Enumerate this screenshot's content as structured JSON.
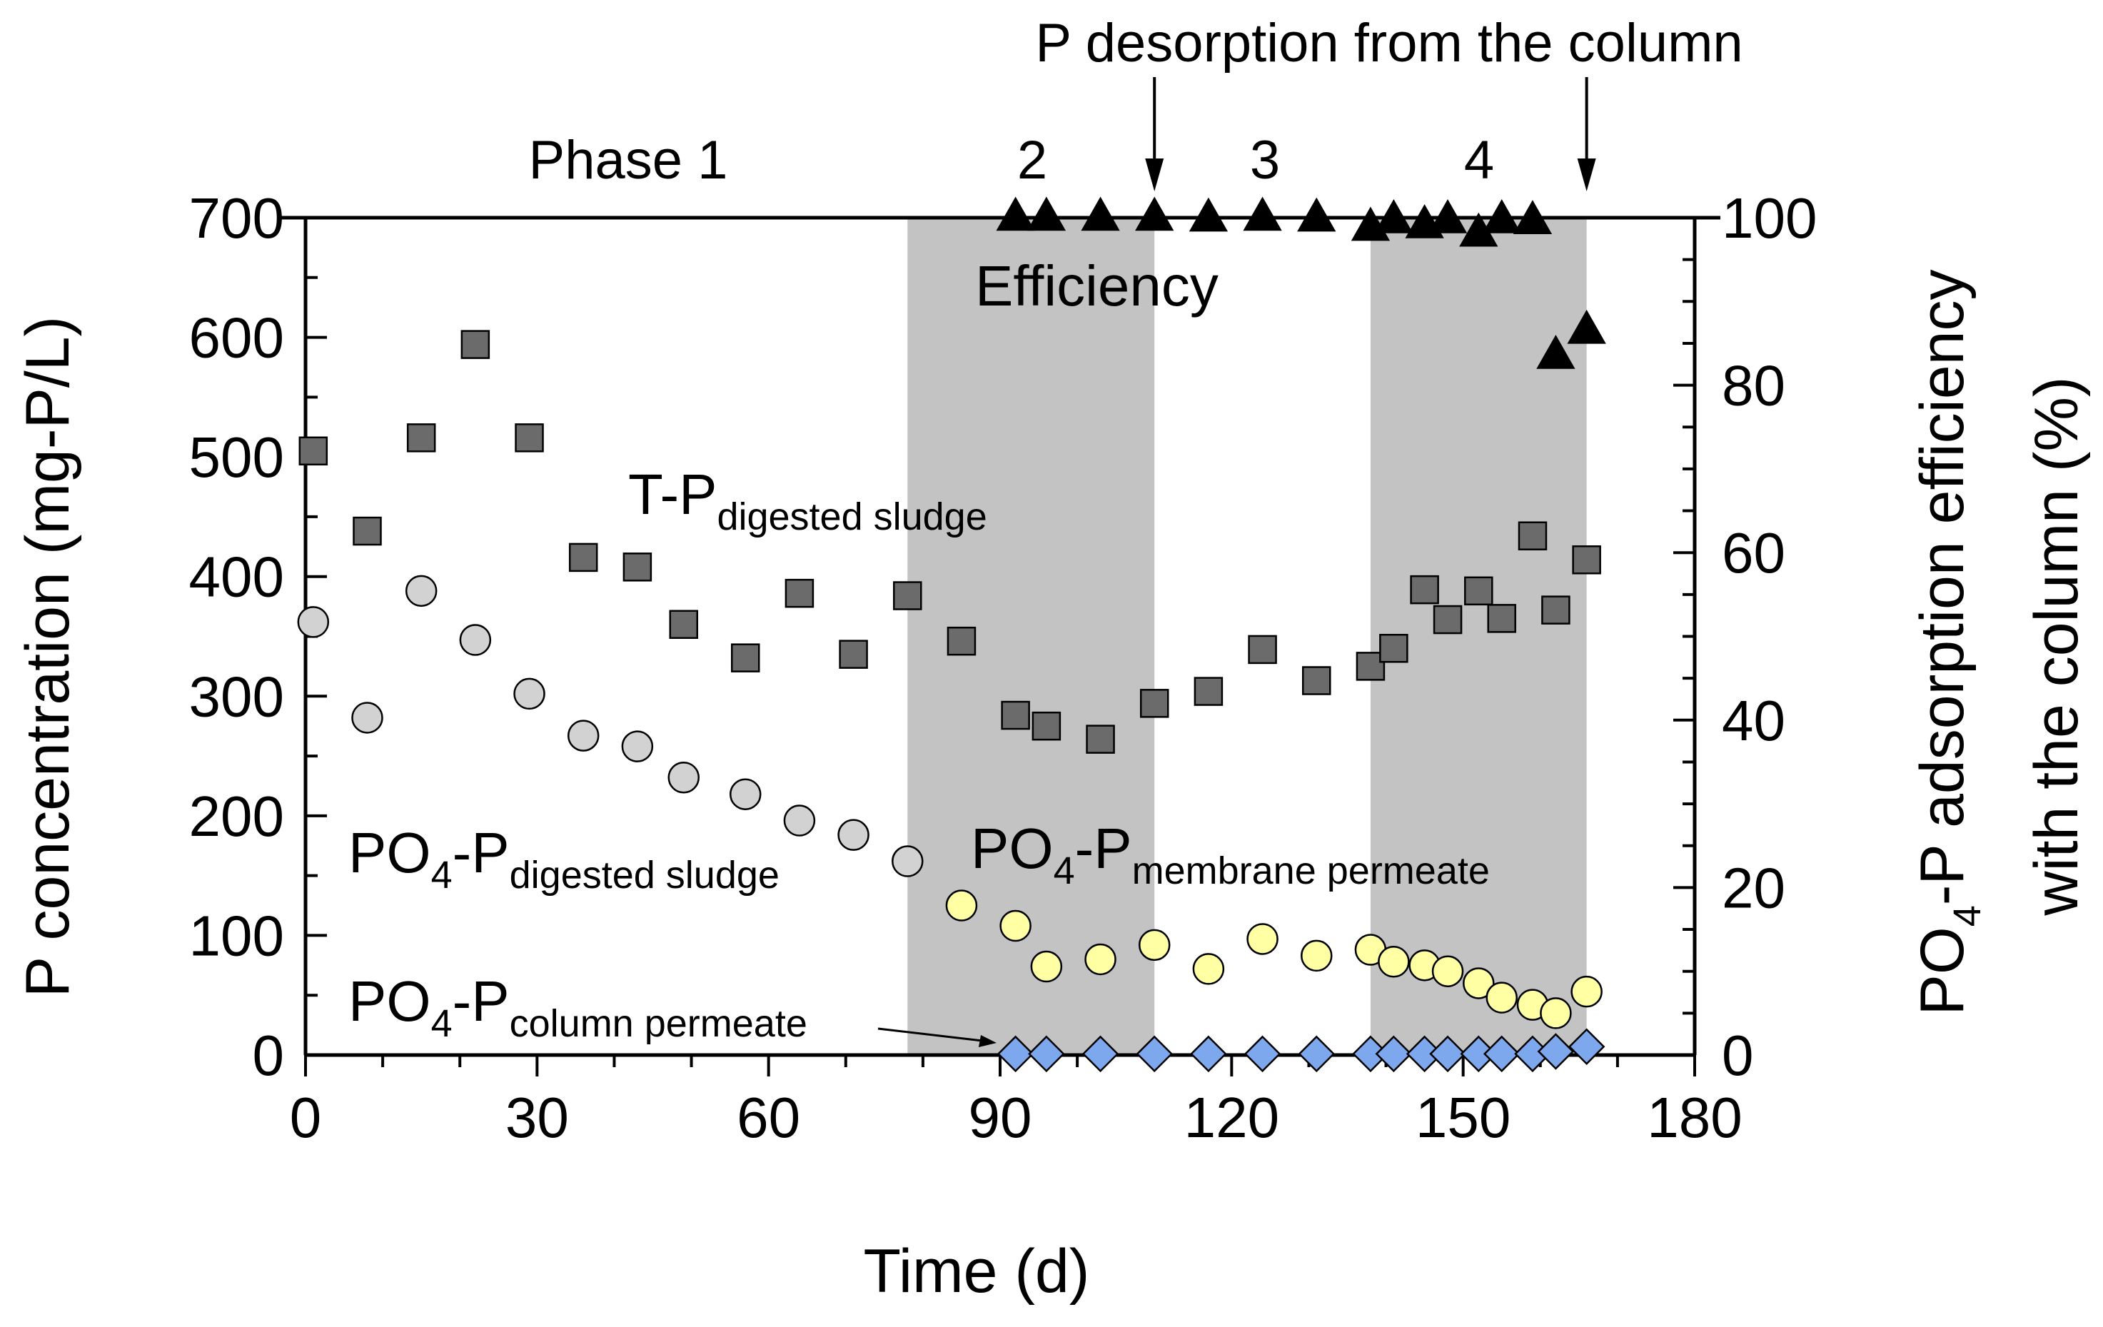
{
  "chart_data": {
    "type": "scatter",
    "xlabel": "Time (d)",
    "ylabel_left": "P concentration (mg-P/L)",
    "ylabel_right": {
      "line1_main": "PO",
      "line1_sub": "4",
      "line1_rest": "-P adsorption efficiency",
      "line2": "with the column (%)"
    },
    "xlim": [
      0,
      180
    ],
    "ylim_left": [
      0,
      700
    ],
    "ylim_right": [
      0,
      100
    ],
    "x_ticks": [
      "0",
      "30",
      "60",
      "90",
      "120",
      "150",
      "180"
    ],
    "y_left_ticks": [
      "0",
      "100",
      "200",
      "300",
      "400",
      "500",
      "600",
      "700"
    ],
    "y_right_ticks": [
      "0",
      "20",
      "40",
      "60",
      "80",
      "100"
    ],
    "x_tick_values": [
      0,
      30,
      60,
      90,
      120,
      150,
      180
    ],
    "y_left_tick_values": [
      0,
      100,
      200,
      300,
      400,
      500,
      600,
      700
    ],
    "y_right_tick_values": [
      0,
      20,
      40,
      60,
      80,
      100
    ],
    "shaded_periods": [
      [
        78,
        110
      ],
      [
        138,
        166
      ]
    ],
    "phase_labels": [
      {
        "text": "Phase 1",
        "x": 42
      },
      {
        "text": "2",
        "x": 94
      },
      {
        "text": "3",
        "x": 124
      },
      {
        "text": "4",
        "x": 152
      }
    ],
    "desorption_annotation": {
      "text": "P desorption from the column",
      "days": [
        110,
        166
      ]
    },
    "efficiency_label": "Efficiency",
    "series": [
      {
        "name": "T-P digested sludge",
        "label_main": "T-P",
        "label_sub": "digested sludge",
        "marker": "square",
        "axis": "left",
        "color": "#6b6b6b",
        "points": [
          [
            1,
            505
          ],
          [
            8,
            438
          ],
          [
            15,
            516
          ],
          [
            22,
            594
          ],
          [
            29,
            516
          ],
          [
            36,
            416
          ],
          [
            43,
            408
          ],
          [
            49,
            360
          ],
          [
            57,
            332
          ],
          [
            64,
            386
          ],
          [
            71,
            335
          ],
          [
            78,
            384
          ],
          [
            85,
            346
          ],
          [
            92,
            284
          ],
          [
            96,
            275
          ],
          [
            103,
            264
          ],
          [
            110,
            294
          ],
          [
            117,
            304
          ],
          [
            124,
            339
          ],
          [
            131,
            313
          ],
          [
            138,
            325
          ],
          [
            141,
            340
          ],
          [
            145,
            389
          ],
          [
            148,
            364
          ],
          [
            152,
            388
          ],
          [
            155,
            365
          ],
          [
            159,
            434
          ],
          [
            162,
            372
          ],
          [
            166,
            414
          ]
        ]
      },
      {
        "name": "PO4-P digested sludge",
        "label_main": "PO",
        "label_sub4": "4",
        "label_rest": "-P",
        "label_sub": "digested sludge",
        "marker": "circle",
        "axis": "left",
        "color": "#d2d2d2",
        "points": [
          [
            1,
            362
          ],
          [
            8,
            282
          ],
          [
            15,
            388
          ],
          [
            22,
            347
          ],
          [
            29,
            302
          ],
          [
            36,
            267
          ],
          [
            43,
            258
          ],
          [
            49,
            232
          ],
          [
            57,
            218
          ],
          [
            64,
            196
          ],
          [
            71,
            184
          ],
          [
            78,
            162
          ]
        ]
      },
      {
        "name": "PO4-P membrane permeate",
        "label_main": "PO",
        "label_sub4": "4",
        "label_rest": "-P",
        "label_sub": "membrane permeate",
        "marker": "circle",
        "axis": "left",
        "color": "#ffffa3",
        "points": [
          [
            85,
            125
          ],
          [
            92,
            108
          ],
          [
            96,
            74
          ],
          [
            103,
            80
          ],
          [
            110,
            92
          ],
          [
            117,
            72
          ],
          [
            124,
            97
          ],
          [
            131,
            83
          ],
          [
            138,
            88
          ],
          [
            141,
            78
          ],
          [
            145,
            75
          ],
          [
            148,
            70
          ],
          [
            152,
            60
          ],
          [
            155,
            48
          ],
          [
            159,
            42
          ],
          [
            162,
            35
          ],
          [
            166,
            53
          ]
        ]
      },
      {
        "name": "PO4-P column permeate",
        "label_main": "PO",
        "label_sub4": "4",
        "label_rest": "-P",
        "label_sub": "column permeate",
        "marker": "diamond",
        "axis": "left",
        "color": "#7ea8ee",
        "points": [
          [
            92,
            1
          ],
          [
            96,
            1
          ],
          [
            103,
            1
          ],
          [
            110,
            1
          ],
          [
            117,
            1
          ],
          [
            124,
            1
          ],
          [
            131,
            1
          ],
          [
            138,
            1
          ],
          [
            141,
            1
          ],
          [
            145,
            1
          ],
          [
            148,
            1
          ],
          [
            152,
            1
          ],
          [
            155,
            1
          ],
          [
            159,
            1
          ],
          [
            162,
            3
          ],
          [
            166,
            7
          ]
        ]
      },
      {
        "name": "Efficiency",
        "marker": "triangle",
        "axis": "right",
        "color": "#000000",
        "points": [
          [
            92,
            100
          ],
          [
            96,
            100
          ],
          [
            103,
            100
          ],
          [
            110,
            100
          ],
          [
            117,
            99.9
          ],
          [
            124,
            100
          ],
          [
            131,
            99.9
          ],
          [
            138,
            98.8
          ],
          [
            141,
            99.7
          ],
          [
            145,
            99.1
          ],
          [
            148,
            99.7
          ],
          [
            152,
            98.1
          ],
          [
            155,
            99.7
          ],
          [
            159,
            99.6
          ],
          [
            162,
            83.5
          ],
          [
            166,
            86.5
          ]
        ]
      }
    ]
  }
}
